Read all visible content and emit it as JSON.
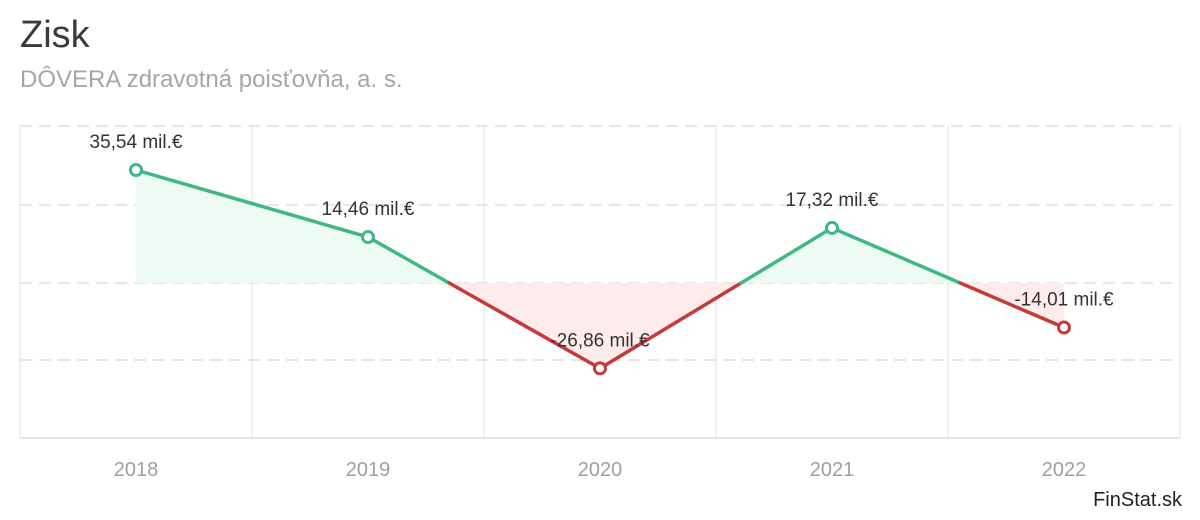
{
  "header": {
    "title": "Zisk",
    "subtitle": "DÔVERA zdravotná poisťovňa, a. s."
  },
  "footer": {
    "brand": "FinStat.sk"
  },
  "chart_data": {
    "type": "line",
    "categories": [
      "2018",
      "2019",
      "2020",
      "2021",
      "2022"
    ],
    "values": [
      35.54,
      14.46,
      -26.86,
      17.32,
      -14.01
    ],
    "value_labels": [
      "35,54 mil.€",
      "14,46 mil.€",
      "-26,86 mil.€",
      "17,32 mil.€",
      "-14,01 mil.€"
    ],
    "unit": "mil.€",
    "grid": true,
    "colors": {
      "positive": "#3fb884",
      "negative": "#c73a3a",
      "positive_fill": "#eefaf4",
      "negative_fill": "#fdeceb"
    }
  }
}
